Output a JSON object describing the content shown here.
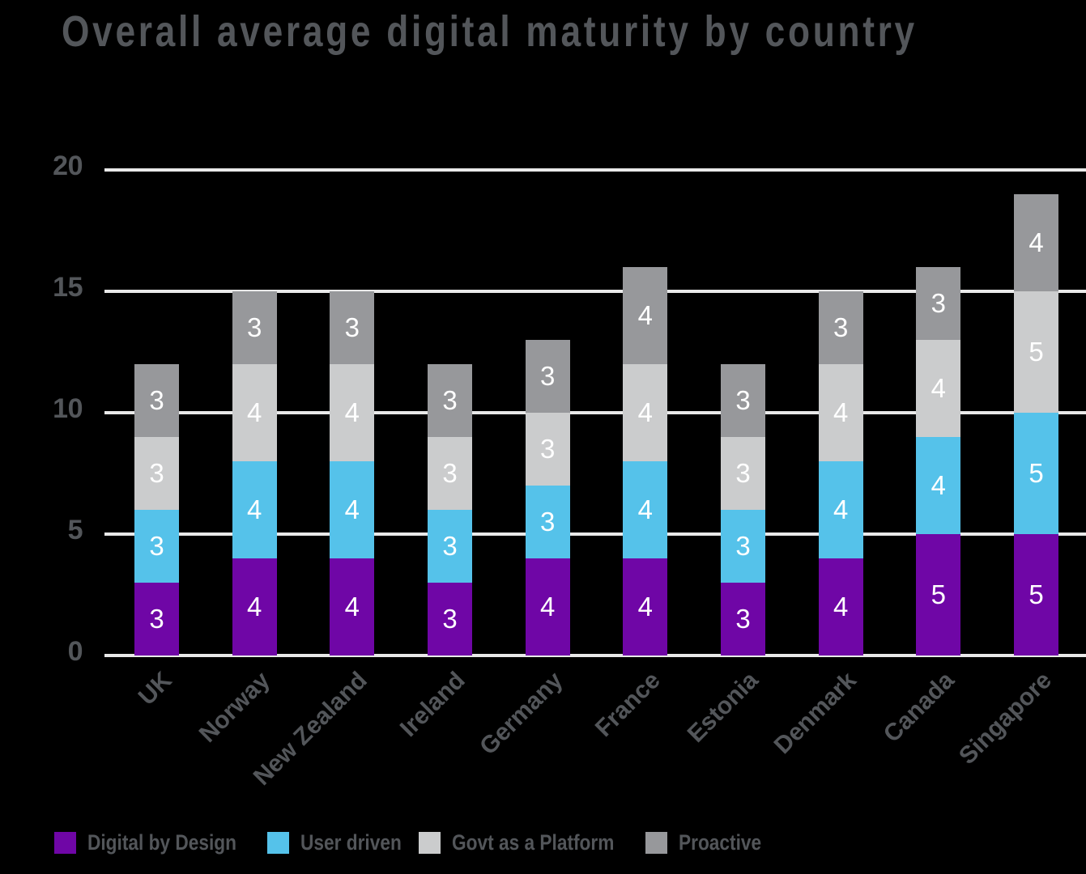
{
  "title": "Overall average digital maturity by country",
  "colors": {
    "background": "#000000",
    "text": "#53565A",
    "gridline": "#E9E9E9",
    "bar_value_text": "#FFFFFF"
  },
  "chart_data": {
    "type": "bar",
    "stacked": true,
    "title": "Overall average digital maturity by country",
    "categories": [
      "UK",
      "Norway",
      "New Zealand",
      "Ireland",
      "Germany",
      "France",
      "Estonia",
      "Denmark",
      "Canada",
      "Singapore"
    ],
    "series": [
      {
        "name": "Digital by Design",
        "color": "#6F06A6",
        "values": [
          3,
          4,
          4,
          3,
          4,
          4,
          3,
          4,
          5,
          5
        ]
      },
      {
        "name": "User driven",
        "color": "#55C2EA",
        "values": [
          3,
          4,
          4,
          3,
          3,
          4,
          3,
          4,
          4,
          5
        ]
      },
      {
        "name": "Govt as a Platform",
        "color": "#CBCCCD",
        "values": [
          3,
          4,
          4,
          3,
          3,
          4,
          3,
          4,
          4,
          5
        ]
      },
      {
        "name": "Proactive",
        "color": "#97989B",
        "values": [
          3,
          3,
          3,
          3,
          3,
          4,
          3,
          3,
          3,
          4
        ]
      }
    ],
    "totals": [
      12,
      15,
      15,
      12,
      13,
      16,
      12,
      15,
      16,
      19
    ],
    "y_ticks": [
      0,
      5,
      10,
      15,
      20
    ],
    "ylim": [
      0,
      20
    ],
    "grid": true,
    "legend_position": "bottom",
    "bar_value_labels": true
  }
}
